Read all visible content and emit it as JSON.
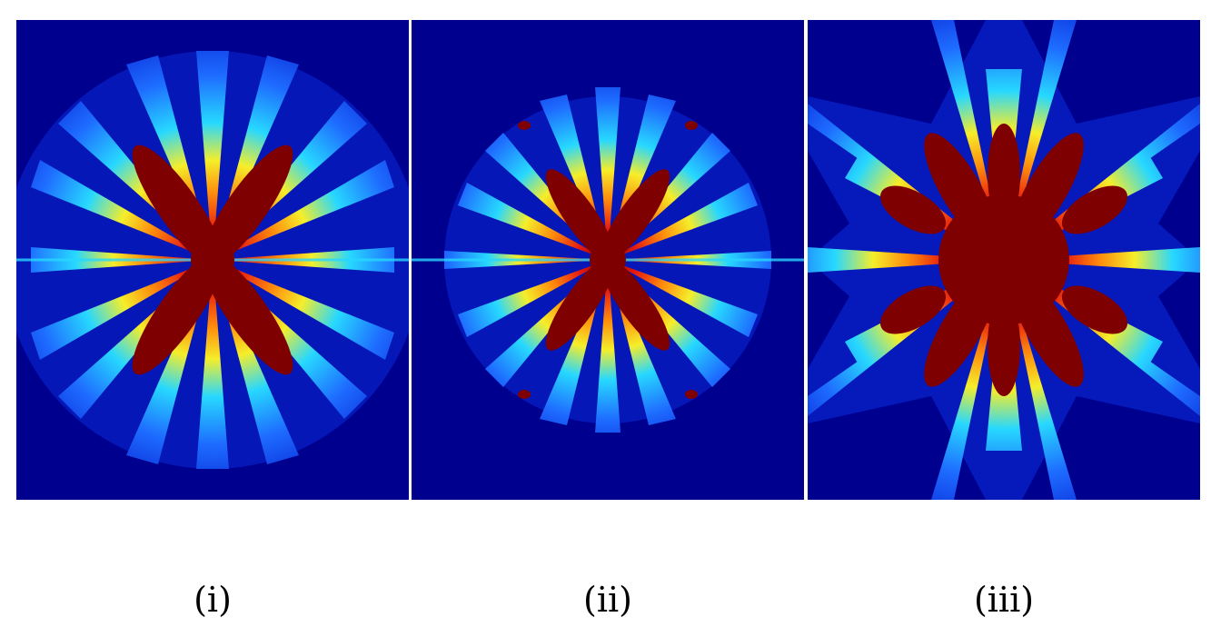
{
  "figure": {
    "panels": [
      {
        "id": "i",
        "caption": "(i)"
      },
      {
        "id": "ii",
        "caption": "(ii)"
      },
      {
        "id": "iii",
        "caption": "(iii)"
      }
    ],
    "colors": {
      "background": "#00008f",
      "halo": "#0a2ad8",
      "blue": "#1e6cff",
      "cyan": "#27d8ff",
      "yellow": "#f5ee2a",
      "orange": "#ff8a0c",
      "red": "#e51a10",
      "core": "#7f0000"
    }
  }
}
